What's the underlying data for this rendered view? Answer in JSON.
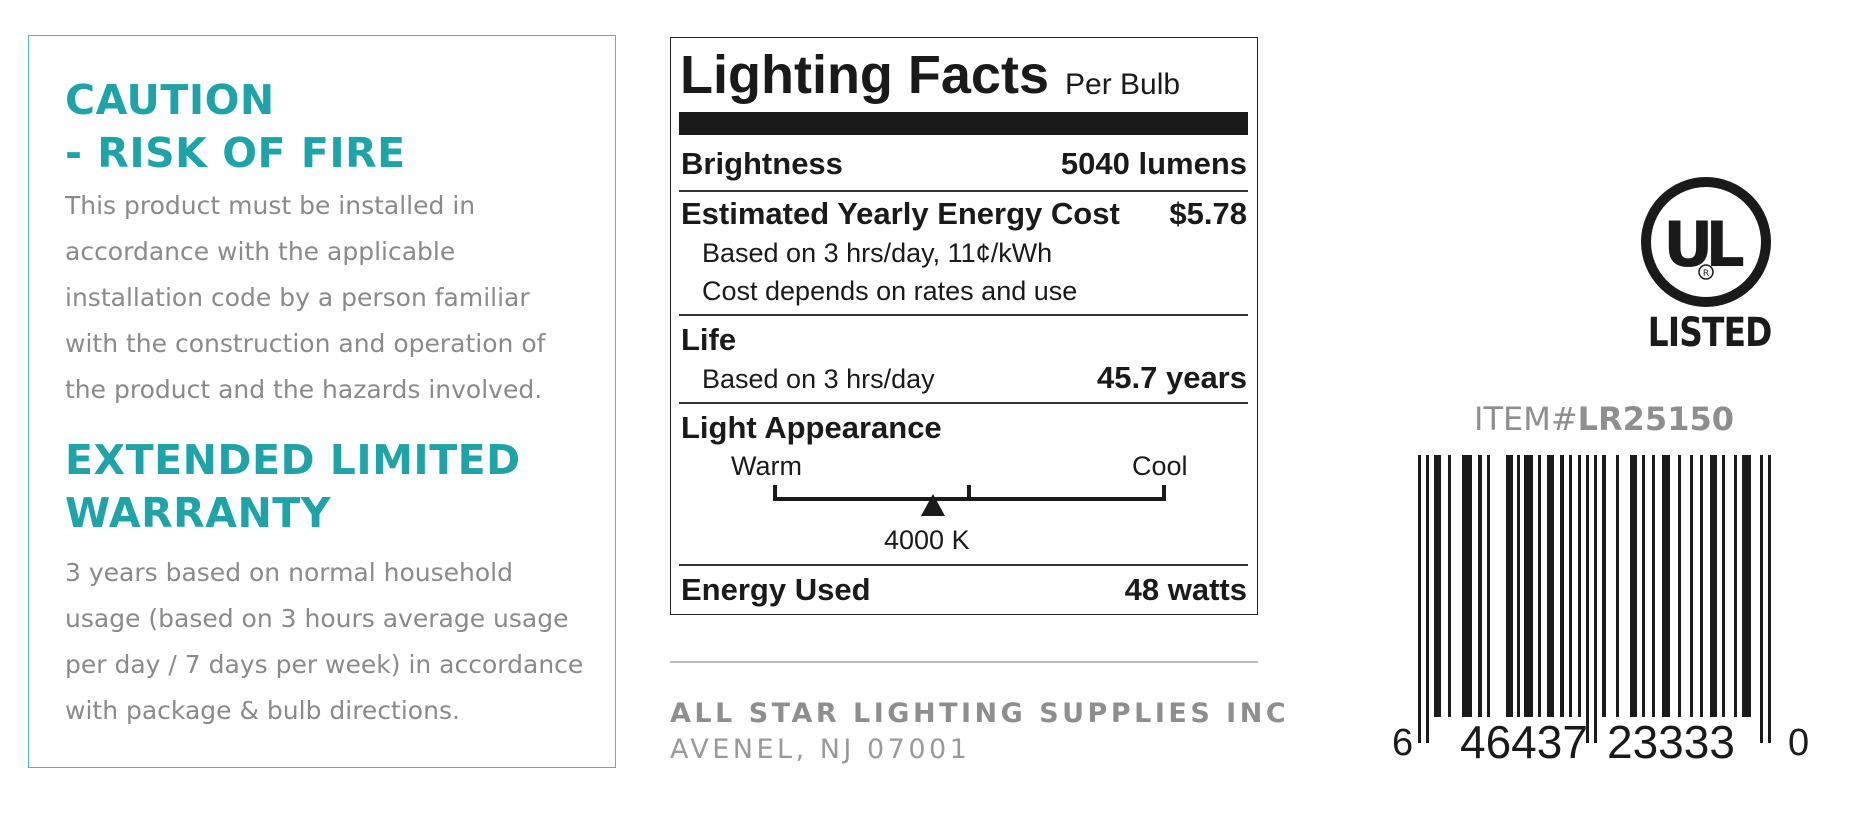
{
  "caution": {
    "heading_line1": "CAUTION",
    "heading_line2": "- RISK OF FIRE",
    "body_lines": [
      "This product must be installed in",
      "accordance with the applicable",
      "installation code by a person familiar",
      "with the construction and operation of",
      "the product and the hazards involved."
    ]
  },
  "warranty": {
    "heading_line1": "EXTENDED LIMITED",
    "heading_line2": "WARRANTY",
    "body_lines": [
      "3 years based on normal household",
      "usage (based on 3 hours average usage",
      "per day / 7 days per week) in accordance",
      "with package & bulb directions."
    ]
  },
  "lighting_facts": {
    "title": "Lighting Facts",
    "subtitle": "Per Bulb",
    "brightness_label": "Brightness",
    "brightness_value": "5040 lumens",
    "cost_label": "Estimated Yearly Energy Cost",
    "cost_value": "$5.78",
    "cost_note1": "Based on 3 hrs/day, 11¢/kWh",
    "cost_note2": "Cost depends on rates and use",
    "life_label": "Life",
    "life_note": "Based on 3 hrs/day",
    "life_value": "45.7 years",
    "appearance_label": "Light Appearance",
    "warm_label": "Warm",
    "cool_label": "Cool",
    "appearance_value": "4000 K",
    "energy_label": "Energy Used",
    "energy_value": "48 watts"
  },
  "company": {
    "name": "ALL STAR LIGHTING SUPPLIES INC",
    "address": "AVENEL, NJ 07001"
  },
  "certification": {
    "logo_letters": "UL",
    "listed_label": "LISTED"
  },
  "item": {
    "prefix": "ITEM#",
    "code": "LR25150"
  },
  "barcode": {
    "digit_first": "6",
    "group_left": "46437",
    "group_right": "23333",
    "digit_last": "0"
  },
  "colors": {
    "accent": "#1ea4a8",
    "body_text": "#8a8a8a",
    "ink": "#1a1a1a"
  }
}
